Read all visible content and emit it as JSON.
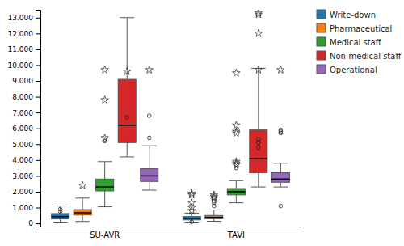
{
  "chart_data": {
    "type": "box",
    "categories": [
      "SU-AVR",
      "TAVI"
    ],
    "series": [
      {
        "name": "Write-down",
        "values": [
          {
            "q1": 280,
            "median": 430,
            "q3": 620,
            "whislo": 80,
            "whishi": 1100,
            "outliers": [
              750,
              900
            ],
            "extremes": []
          },
          {
            "q1": 220,
            "median": 320,
            "q3": 430,
            "whislo": 80,
            "whishi": 650,
            "outliers": [
              100
            ],
            "extremes": [
              800,
              1000,
              1300,
              1800,
              1900
            ]
          }
        ]
      },
      {
        "name": "Pharmaceutical",
        "values": [
          {
            "q1": 530,
            "median": 670,
            "q3": 870,
            "whislo": 120,
            "whishi": 1600,
            "outliers": [],
            "extremes": [
              2400
            ]
          },
          {
            "q1": 290,
            "median": 380,
            "q3": 500,
            "whislo": 130,
            "whishi": 850,
            "outliers": [
              1100,
              1300,
              1400
            ],
            "extremes": [
              1600,
              1700,
              1800
            ]
          }
        ]
      },
      {
        "name": "Medical staff",
        "values": [
          {
            "q1": 2050,
            "median": 2300,
            "q3": 2800,
            "whislo": 1050,
            "whishi": 3900,
            "outliers": [
              5200,
              5300
            ],
            "extremes": [
              5400,
              7800,
              9700
            ]
          },
          {
            "q1": 1800,
            "median": 2000,
            "q3": 2200,
            "whislo": 1300,
            "whishi": 2700,
            "outliers": [
              3500
            ],
            "extremes": [
              3700,
              3800,
              3900,
              5700,
              5800,
              6200,
              9500
            ]
          }
        ]
      },
      {
        "name": "Non-medical staff",
        "values": [
          {
            "q1": 5100,
            "median": 6200,
            "q3": 9100,
            "whislo": 4200,
            "whishi": 13000,
            "outliers": [
              6700
            ],
            "extremes": [
              9600
            ]
          },
          {
            "q1": 3200,
            "median": 4100,
            "q3": 5900,
            "whislo": 2300,
            "whishi": 9800,
            "outliers": [
              4800,
              5100,
              5300
            ],
            "extremes": [
              9700,
              12000,
              13200,
              13300
            ]
          }
        ]
      },
      {
        "name": "Operational",
        "values": [
          {
            "q1": 2650,
            "median": 3000,
            "q3": 3450,
            "whislo": 2100,
            "whishi": 4900,
            "outliers": [
              5400,
              6800
            ],
            "extremes": [
              9700
            ]
          },
          {
            "q1": 2600,
            "median": 2800,
            "q3": 3200,
            "whislo": 2300,
            "whishi": 3800,
            "outliers": [
              1100,
              5700,
              5800,
              5900
            ],
            "extremes": [
              9700
            ]
          }
        ]
      }
    ],
    "ylim": [
      -200,
      13500
    ],
    "yticks": [
      0,
      {
        "value": 1000,
        "label": "1.000"
      },
      {
        "value": 2000,
        "label": "2.000"
      },
      {
        "value": 3000,
        "label": "3.000"
      },
      {
        "value": 4000,
        "label": "4.000"
      },
      {
        "value": 5000,
        "label": "5.000"
      },
      {
        "value": 6000,
        "label": "6.000"
      },
      {
        "value": 7000,
        "label": "7.000"
      },
      {
        "value": 8000,
        "label": "8.000"
      },
      {
        "value": 9000,
        "label": "9.000"
      },
      {
        "value": 10000,
        "label": "10.000"
      },
      {
        "value": 11000,
        "label": "11.000"
      },
      {
        "value": 12000,
        "label": "12.000"
      },
      {
        "value": 13000,
        "label": "13.000"
      }
    ],
    "grid": false,
    "legend": "right"
  }
}
